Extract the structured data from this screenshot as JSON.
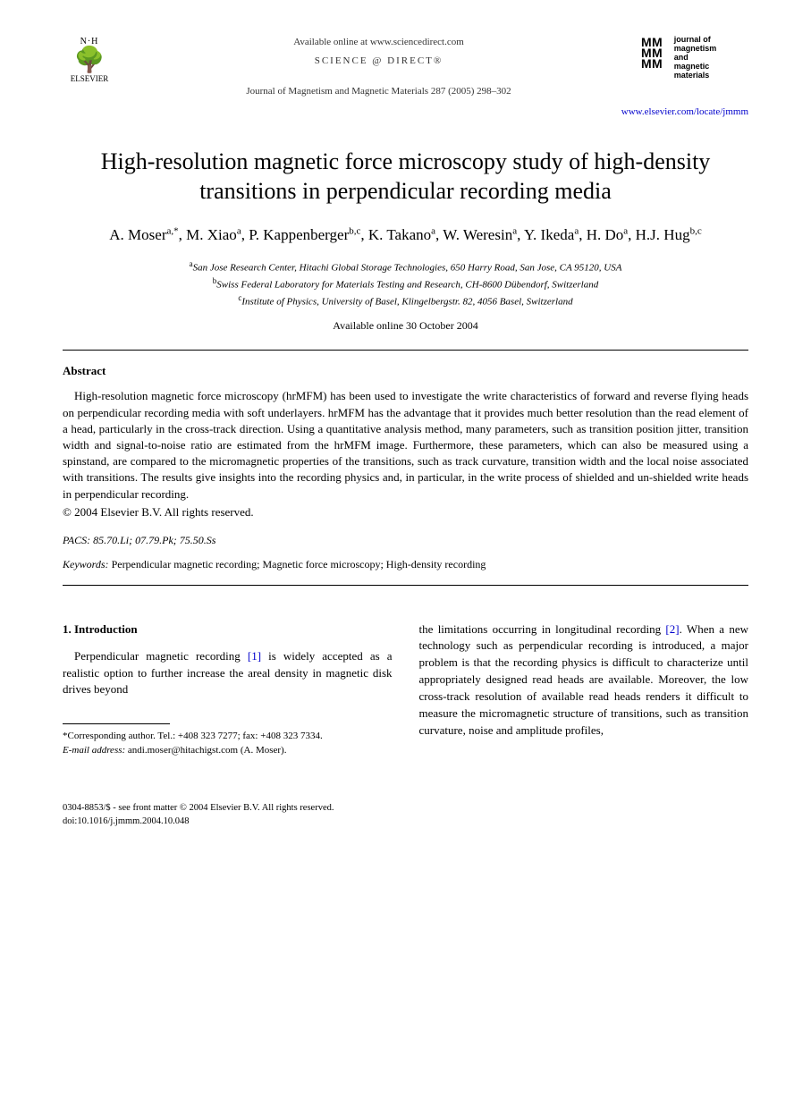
{
  "header": {
    "publisher_name": "ELSEVIER",
    "available_online": "Available online at www.sciencedirect.com",
    "science_direct": "SCIENCE @ DIRECT®",
    "journal_ref": "Journal of Magnetism and Magnetic Materials 287 (2005) 298–302",
    "journal_name_lines": [
      "journal of",
      "magnetism",
      "and",
      "magnetic",
      "materials"
    ],
    "journal_url": "www.elsevier.com/locate/jmmm"
  },
  "title": "High-resolution magnetic force microscopy study of high-density transitions in perpendicular recording media",
  "authors_html": "A. Moser<sup>a,*</sup>, M. Xiao<sup>a</sup>, P. Kappenberger<sup>b,c</sup>, K. Takano<sup>a</sup>, W. Weresin<sup>a</sup>, Y. Ikeda<sup>a</sup>, H. Do<sup>a</sup>, H.J. Hug<sup>b,c</sup>",
  "affiliations": [
    {
      "sup": "a",
      "text": "San Jose Research Center, Hitachi Global Storage Technologies, 650 Harry Road, San Jose, CA 95120, USA"
    },
    {
      "sup": "b",
      "text": "Swiss Federal Laboratory for Materials Testing and Research, CH-8600 Dübendorf, Switzerland"
    },
    {
      "sup": "c",
      "text": "Institute of Physics, University of Basel, Klingelbergstr. 82, 4056 Basel, Switzerland"
    }
  ],
  "available_date": "Available online 30 October 2004",
  "abstract": {
    "heading": "Abstract",
    "text": "High-resolution magnetic force microscopy (hrMFM) has been used to investigate the write characteristics of forward and reverse flying heads on perpendicular recording media with soft underlayers. hrMFM has the advantage that it provides much better resolution than the read element of a head, particularly in the cross-track direction. Using a quantitative analysis method, many parameters, such as transition position jitter, transition width and signal-to-noise ratio are estimated from the hrMFM image. Furthermore, these parameters, which can also be measured using a spinstand, are compared to the micromagnetic properties of the transitions, such as track curvature, transition width and the local noise associated with transitions. The results give insights into the recording physics and, in particular, in the write process of shielded and un-shielded write heads in perpendicular recording.",
    "copyright": "© 2004 Elsevier B.V. All rights reserved."
  },
  "pacs": {
    "label": "PACS:",
    "codes": "85.70.Li; 07.79.Pk; 75.50.Ss"
  },
  "keywords": {
    "label": "Keywords:",
    "text": "Perpendicular magnetic recording; Magnetic force microscopy; High-density recording"
  },
  "body": {
    "section_heading": "1. Introduction",
    "col1_pre": "Perpendicular magnetic recording ",
    "col1_ref": "[1]",
    "col1_post": " is widely accepted as a realistic option to further increase the areal density in magnetic disk drives beyond",
    "col2_pre": "the limitations occurring in longitudinal recording ",
    "col2_ref": "[2]",
    "col2_post": ". When a new technology such as perpendicular recording is introduced, a major problem is that the recording physics is difficult to characterize until appropriately designed read heads are available. Moreover, the low cross-track resolution of available read heads renders it difficult to measure the micromagnetic structure of transitions, such as transition curvature, noise and amplitude profiles,"
  },
  "footnote": {
    "corresponding": "*Corresponding author. Tel.: +408 323 7277; fax: +408 323 7334.",
    "email_label": "E-mail address:",
    "email": "andi.moser@hitachigst.com (A. Moser)."
  },
  "footer": {
    "line1": "0304-8853/$ - see front matter © 2004 Elsevier B.V. All rights reserved.",
    "line2": "doi:10.1016/j.jmmm.2004.10.048"
  },
  "colors": {
    "text": "#000000",
    "link": "#0000cc",
    "background": "#ffffff"
  }
}
